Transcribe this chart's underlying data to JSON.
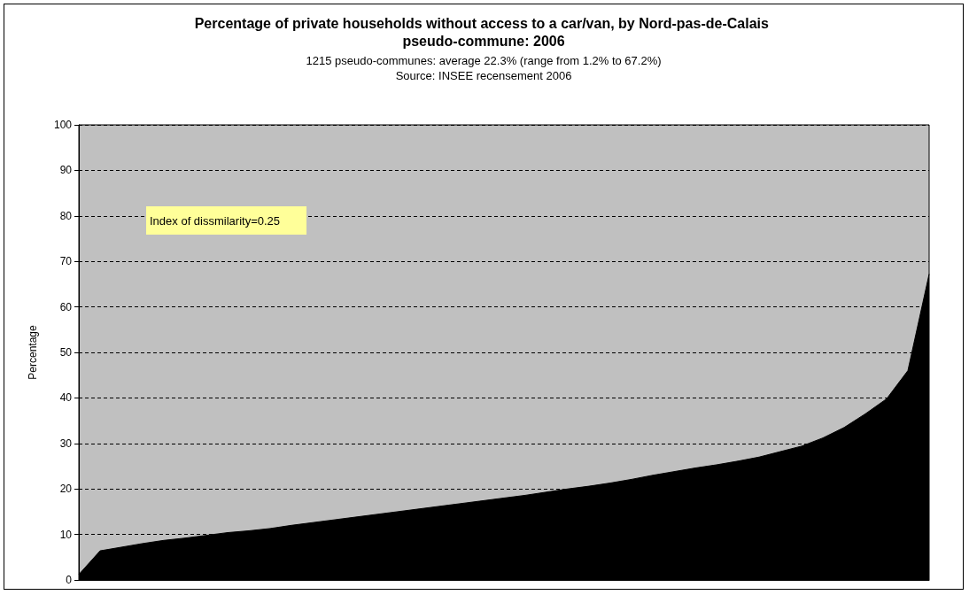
{
  "chart_data": {
    "type": "area",
    "title": "Percentage of private households without access to a car/van, by Nord-pas-de-Calais pseudo-commune: 2006",
    "subtitle": "1215 pseudo-communes: average 22.3% (range from 1.2% to 67.2%)",
    "ylabel": "Percentage",
    "annotations": [
      "Source: INSEE recensement 2006",
      "Index of dissmilarity=0.25"
    ],
    "categories": [
      null,
      null,
      null,
      null,
      null,
      null,
      null,
      null,
      null,
      null,
      null,
      null,
      null,
      null,
      null,
      null,
      null,
      null,
      null,
      null,
      null,
      null,
      null,
      null,
      null,
      null,
      null,
      null,
      null,
      null,
      null,
      null,
      null,
      null,
      null,
      null,
      null,
      null,
      null,
      null,
      null
    ],
    "series": [
      {
        "color": "#000000",
        "values": [
          1.2,
          6.4,
          7.2,
          8,
          8.7,
          9.2,
          9.8,
          10.4,
          10.8,
          11.3,
          12,
          12.6,
          13.2,
          13.8,
          14.4,
          15,
          15.6,
          16.2,
          16.8,
          17.4,
          18,
          18.6,
          19.3,
          20,
          20.6,
          21.3,
          22.1,
          23,
          23.8,
          24.6,
          25.3,
          26.1,
          27,
          28.2,
          29.4,
          31.2,
          33.5,
          36.5,
          39.8,
          46,
          67.2
        ]
      }
    ],
    "ylim": [
      0,
      100
    ],
    "yticks": [
      0,
      10,
      20,
      30,
      40,
      50,
      60,
      70,
      80,
      90,
      100
    ],
    "tick_labels": "y",
    "grid": "y",
    "line_style": "solid",
    "marker": "none"
  }
}
